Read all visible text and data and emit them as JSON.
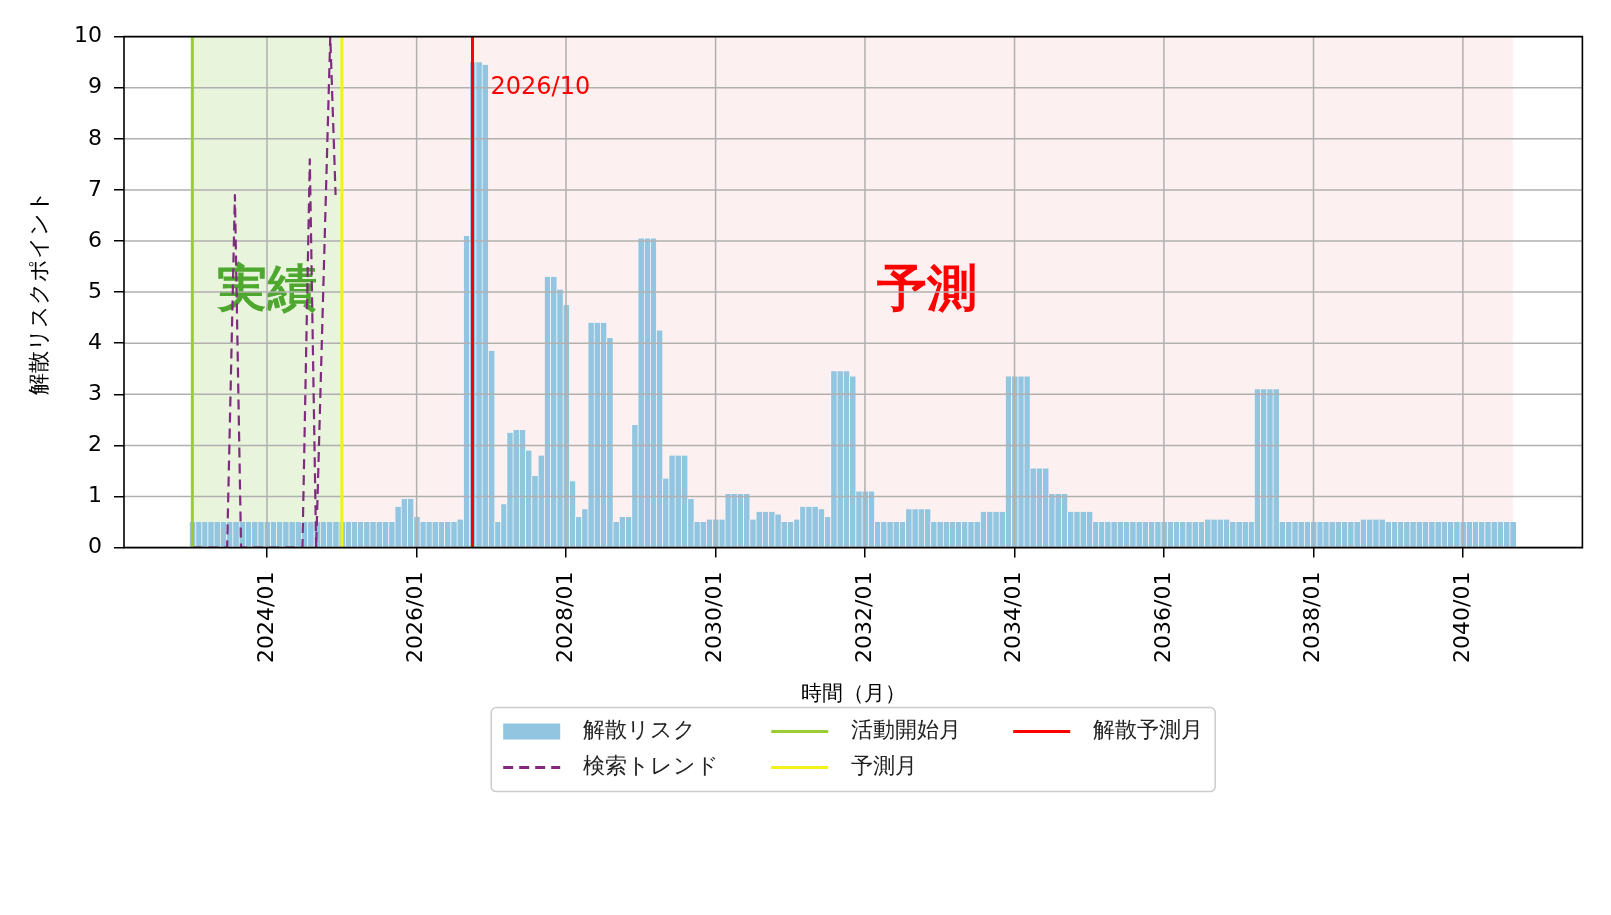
{
  "chart_data": {
    "type": "bar",
    "xlabel": "時間（月）",
    "ylabel": "解散リスクポイント",
    "x": [
      "2023-01",
      "2023-02",
      "2023-03",
      "2023-04",
      "2023-05",
      "2023-06",
      "2023-07",
      "2023-08",
      "2023-09",
      "2023-10",
      "2023-11",
      "2023-12",
      "2024-01",
      "2024-02",
      "2024-03",
      "2024-04",
      "2024-05",
      "2024-06",
      "2024-07",
      "2024-08",
      "2024-09",
      "2024-10",
      "2024-11",
      "2024-12",
      "2025-01",
      "2025-02",
      "2025-03",
      "2025-04",
      "2025-05",
      "2025-06",
      "2025-07",
      "2025-08",
      "2025-09",
      "2025-10",
      "2025-11",
      "2025-12",
      "2026-01",
      "2026-02",
      "2026-03",
      "2026-04",
      "2026-05",
      "2026-06",
      "2026-07",
      "2026-08",
      "2026-09",
      "2026-10",
      "2026-11",
      "2026-12",
      "2027-01",
      "2027-02",
      "2027-03",
      "2027-04",
      "2027-05",
      "2027-06",
      "2027-07",
      "2027-08",
      "2027-09",
      "2027-10",
      "2027-11",
      "2027-12",
      "2028-01",
      "2028-02",
      "2028-03",
      "2028-04",
      "2028-05",
      "2028-06",
      "2028-07",
      "2028-08",
      "2028-09",
      "2028-10",
      "2028-11",
      "2028-12",
      "2029-01",
      "2029-02",
      "2029-03",
      "2029-04",
      "2029-05",
      "2029-06",
      "2029-07",
      "2029-08",
      "2029-09",
      "2029-10",
      "2029-11",
      "2029-12",
      "2030-01",
      "2030-02",
      "2030-03",
      "2030-04",
      "2030-05",
      "2030-06",
      "2030-07",
      "2030-08",
      "2030-09",
      "2030-10",
      "2030-11",
      "2030-12",
      "2031-01",
      "2031-02",
      "2031-03",
      "2031-04",
      "2031-05",
      "2031-06",
      "2031-07",
      "2031-08",
      "2031-09",
      "2031-10",
      "2031-11",
      "2031-12",
      "2032-01",
      "2032-02",
      "2032-03",
      "2032-04",
      "2032-05",
      "2032-06",
      "2032-07",
      "2032-08",
      "2032-09",
      "2032-10",
      "2032-11",
      "2032-12",
      "2033-01",
      "2033-02",
      "2033-03",
      "2033-04",
      "2033-05",
      "2033-06",
      "2033-07",
      "2033-08",
      "2033-09",
      "2033-10",
      "2033-11",
      "2033-12",
      "2034-01",
      "2034-02",
      "2034-03",
      "2034-04",
      "2034-05",
      "2034-06",
      "2034-07",
      "2034-08",
      "2034-09",
      "2034-10",
      "2034-11",
      "2034-12",
      "2035-01",
      "2035-02",
      "2035-03",
      "2035-04",
      "2035-05",
      "2035-06",
      "2035-07",
      "2035-08",
      "2035-09",
      "2035-10",
      "2035-11",
      "2035-12",
      "2036-01",
      "2036-02",
      "2036-03",
      "2036-04",
      "2036-05",
      "2036-06",
      "2036-07",
      "2036-08",
      "2036-09",
      "2036-10",
      "2036-11",
      "2036-12",
      "2037-01",
      "2037-02",
      "2037-03",
      "2037-04",
      "2037-05",
      "2037-06",
      "2037-07",
      "2037-08",
      "2037-09",
      "2037-10",
      "2037-11",
      "2037-12",
      "2038-01",
      "2038-02",
      "2038-03",
      "2038-04",
      "2038-05",
      "2038-06",
      "2038-07",
      "2038-08",
      "2038-09",
      "2038-10",
      "2038-11",
      "2038-12",
      "2039-01",
      "2039-02",
      "2039-03",
      "2039-04",
      "2039-05",
      "2039-06",
      "2039-07",
      "2039-08",
      "2039-09",
      "2039-10",
      "2039-11",
      "2039-12",
      "2040-01",
      "2040-02",
      "2040-03",
      "2040-04",
      "2040-05",
      "2040-06",
      "2040-07",
      "2040-08",
      "2040-09"
    ],
    "series": [
      {
        "name": "解散リスク",
        "color": "#92c5e0",
        "values": [
          0.5,
          0.5,
          0.5,
          0.5,
          0.5,
          0.5,
          0.5,
          0.5,
          0.5,
          0.5,
          0.5,
          0.5,
          0.5,
          0.5,
          0.5,
          0.5,
          0.5,
          0.5,
          0.5,
          0.5,
          0.5,
          0.5,
          0.5,
          0.5,
          0.5,
          0.5,
          0.5,
          0.5,
          0.5,
          0.5,
          0.5,
          0.5,
          0.5,
          0.8,
          0.95,
          0.95,
          0.6,
          0.5,
          0.5,
          0.5,
          0.5,
          0.5,
          0.5,
          0.55,
          6.1,
          9.5,
          9.5,
          9.45,
          3.85,
          0.5,
          0.85,
          2.25,
          2.3,
          2.3,
          1.9,
          1.4,
          1.8,
          5.3,
          5.3,
          5.05,
          4.75,
          1.3,
          0.6,
          0.75,
          4.4,
          4.4,
          4.4,
          4.1,
          0.5,
          0.6,
          0.6,
          2.4,
          6.05,
          6.05,
          6.05,
          4.25,
          1.35,
          1.8,
          1.8,
          1.8,
          0.95,
          0.5,
          0.5,
          0.55,
          0.55,
          0.55,
          1.05,
          1.05,
          1.05,
          1.05,
          0.55,
          0.7,
          0.7,
          0.7,
          0.65,
          0.5,
          0.5,
          0.55,
          0.8,
          0.8,
          0.8,
          0.75,
          0.6,
          3.45,
          3.45,
          3.45,
          3.35,
          1.1,
          1.1,
          1.1,
          0.5,
          0.5,
          0.5,
          0.5,
          0.5,
          0.75,
          0.75,
          0.75,
          0.75,
          0.5,
          0.5,
          0.5,
          0.5,
          0.5,
          0.5,
          0.5,
          0.5,
          0.7,
          0.7,
          0.7,
          0.7,
          3.35,
          3.35,
          3.35,
          3.35,
          1.55,
          1.55,
          1.55,
          1.05,
          1.05,
          1.05,
          0.7,
          0.7,
          0.7,
          0.7,
          0.5,
          0.5,
          0.5,
          0.5,
          0.5,
          0.5,
          0.5,
          0.5,
          0.5,
          0.5,
          0.5,
          0.5,
          0.5,
          0.5,
          0.5,
          0.5,
          0.5,
          0.5,
          0.55,
          0.55,
          0.55,
          0.55,
          0.5,
          0.5,
          0.5,
          0.5,
          3.1,
          3.1,
          3.1,
          3.1,
          0.5,
          0.5,
          0.5,
          0.5,
          0.5,
          0.5,
          0.5,
          0.5,
          0.5,
          0.5,
          0.5,
          0.5,
          0.5,
          0.55,
          0.55,
          0.55,
          0.55,
          0.5,
          0.5,
          0.5,
          0.5,
          0.5,
          0.5,
          0.5,
          0.5,
          0.5,
          0.5,
          0.5,
          0.5,
          0.5,
          0.5,
          0.5,
          0.5,
          0.5,
          0.5,
          0.5,
          0.5,
          0.5
        ]
      },
      {
        "name": "検索トレンド",
        "type": "line",
        "color": "#802a80",
        "line_style": "dashed",
        "marker": "none",
        "x": [
          "2023-01-01",
          "2023-06-20",
          "2023-07-28",
          "2023-08-27",
          "2024-06-22",
          "2024-07-28",
          "2024-08-28",
          "2024-11-05",
          "2024-12-01"
        ],
        "values": [
          0,
          0,
          6.9,
          0,
          0,
          7.6,
          0,
          10,
          6.9
        ]
      }
    ],
    "xlim": [
      "2022-02-01",
      "2041-08-07"
    ],
    "xticks": [
      {
        "value": "2024-01",
        "label": "2024/01"
      },
      {
        "value": "2026-01",
        "label": "2026/01"
      },
      {
        "value": "2028-01",
        "label": "2028/01"
      },
      {
        "value": "2030-01",
        "label": "2030/01"
      },
      {
        "value": "2032-01",
        "label": "2032/01"
      },
      {
        "value": "2034-01",
        "label": "2034/01"
      },
      {
        "value": "2036-01",
        "label": "2036/01"
      },
      {
        "value": "2038-01",
        "label": "2038/01"
      },
      {
        "value": "2040-01",
        "label": "2040/01"
      }
    ],
    "ylim": [
      0,
      10
    ],
    "yticks": [
      0,
      1,
      2,
      3,
      4,
      5,
      6,
      7,
      8,
      9,
      10
    ],
    "grid": true,
    "legend": "bottom",
    "ref_lines": [
      {
        "axis": "x",
        "value": "2023-01",
        "label": "活動開始月",
        "color": "#9acd32"
      },
      {
        "axis": "x",
        "value": "2025-01",
        "label": "予測月",
        "color": "#f2f21a"
      },
      {
        "axis": "x",
        "value": "2026-10",
        "label": "解散予測月",
        "color": "#ff0000"
      }
    ],
    "bands": [
      {
        "axis": "x",
        "from": "2023-01",
        "to": "2025-01",
        "label": "実績",
        "color": "#e8f4dc"
      },
      {
        "axis": "x",
        "from": "2025-01",
        "to": "2040-09",
        "label": "予測",
        "color": "#fdf0f0"
      }
    ],
    "annotations": [
      {
        "text": "2026/10",
        "x": "2026-10",
        "y": 9
      }
    ]
  }
}
